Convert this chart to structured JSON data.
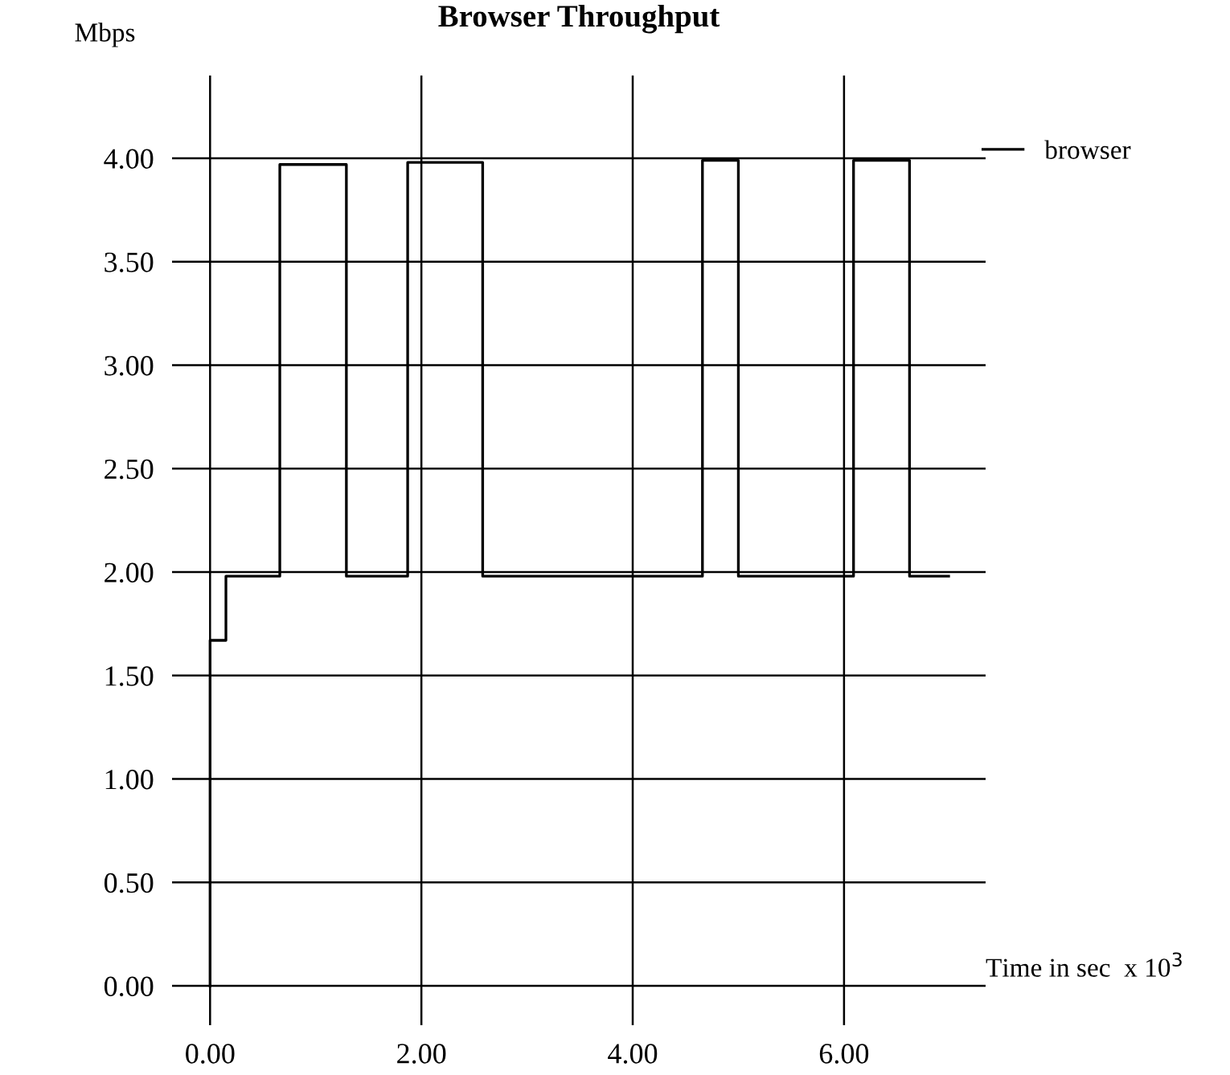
{
  "chart_data": {
    "type": "step",
    "title": "Browser Throughput",
    "xlabel": "Time in sec  x 10$^{3}$",
    "ylabel": "Mbps",
    "series": [
      {
        "name": "browser",
        "color": "#000000",
        "x": [
          0,
          0,
          0.15,
          0.66,
          1.29,
          1.87,
          2.58,
          4.66,
          5.0,
          6.09,
          6.62,
          6.99
        ],
        "values": [
          0,
          1.67,
          1.98,
          3.97,
          1.98,
          3.98,
          1.98,
          3.99,
          1.98,
          3.99,
          1.98,
          1.98
        ]
      }
    ],
    "xlim": [
      -0.36,
      7.34
    ],
    "ylim": [
      -0.19,
      4.4
    ],
    "xticks": [
      {
        "value": 0,
        "label": "0.00"
      },
      {
        "value": 2,
        "label": "2.00"
      },
      {
        "value": 4,
        "label": "4.00"
      },
      {
        "value": 6,
        "label": "6.00"
      }
    ],
    "yticks": [
      {
        "value": 0,
        "label": "0.00"
      },
      {
        "value": 0.5,
        "label": "0.50"
      },
      {
        "value": 1,
        "label": "1.00"
      },
      {
        "value": 1.5,
        "label": "1.50"
      },
      {
        "value": 2,
        "label": "2.00"
      },
      {
        "value": 2.5,
        "label": "2.50"
      },
      {
        "value": 3,
        "label": "3.00"
      },
      {
        "value": 3.5,
        "label": "3.50"
      },
      {
        "value": 4,
        "label": "4.00"
      }
    ],
    "grid": true,
    "legend": "top right"
  }
}
